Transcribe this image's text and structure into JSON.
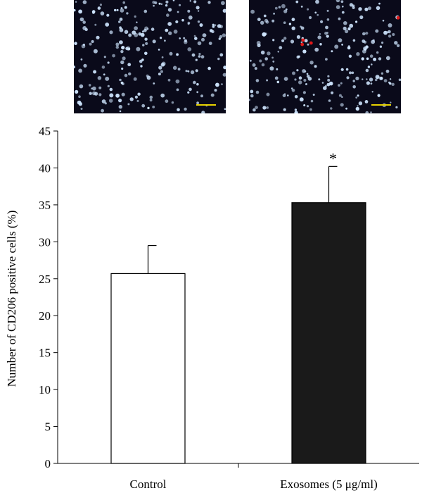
{
  "panels": [
    {
      "name": "Control",
      "background": "#0a0a1a",
      "cell_color": "#cfe6ff",
      "scale_bar_color": "#e8d300",
      "red_cells": 0
    },
    {
      "name": "Exosomes (5 μg/ml)",
      "background": "#0a0a1a",
      "cell_color": "#cfe6ff",
      "scale_bar_color": "#e8d300",
      "red_cells": 4
    }
  ],
  "chart_data": {
    "type": "bar",
    "categories": [
      "Control",
      "Exosomes (5 μg/ml)"
    ],
    "values": [
      25.7,
      35.3
    ],
    "errors": [
      3.8,
      4.9
    ],
    "bar_fill": [
      "#ffffff",
      "#1a1a1a"
    ],
    "bar_stroke": "#000000",
    "annotations": [
      {
        "category": "Exosomes (5 μg/ml)",
        "text": "*"
      }
    ],
    "ylabel": "Number of CD206 positive cells (%)",
    "xlabel": "",
    "ylim": [
      0,
      45
    ],
    "yticks": [
      0,
      5,
      10,
      15,
      20,
      25,
      30,
      35,
      40,
      45
    ],
    "grid": false,
    "legend": "none"
  }
}
